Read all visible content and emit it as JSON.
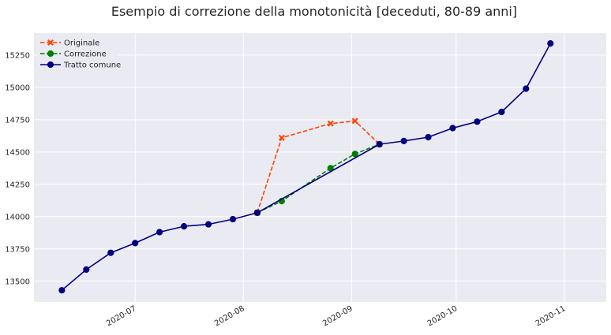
{
  "chart_data": {
    "type": "line",
    "title": "Esempio di correzione della monotonicità [deceduti, 80-89 anni]",
    "xlabel": "",
    "ylabel": "",
    "x_ticks": [
      "2020-07",
      "2020-08",
      "2020-09",
      "2020-10",
      "2020-11"
    ],
    "x_tick_dates": [
      "2020-07-01",
      "2020-08-01",
      "2020-09-01",
      "2020-10-01",
      "2020-11-01"
    ],
    "xlim": [
      "2020-06-02",
      "2020-11-13"
    ],
    "ylim": [
      13340,
      15420
    ],
    "y_ticks": [
      13500,
      13750,
      14000,
      14250,
      14500,
      14750,
      15000,
      15250
    ],
    "grid": true,
    "legend_position": "top-left",
    "series": [
      {
        "name": "Originale",
        "color": "#ff4500",
        "line_style": "dashed",
        "marker": "x",
        "x": [
          "2020-08-05",
          "2020-08-12",
          "2020-08-26",
          "2020-09-02",
          "2020-09-09"
        ],
        "values": [
          14030,
          14610,
          14720,
          14740,
          14560
        ]
      },
      {
        "name": "Correzione",
        "color": "#008000",
        "line_style": "dashed",
        "marker": "circle",
        "x": [
          "2020-08-05",
          "2020-08-12",
          "2020-08-26",
          "2020-09-02",
          "2020-09-09"
        ],
        "values": [
          14030,
          14120,
          14375,
          14485,
          14560
        ]
      },
      {
        "name": "Tratto comune",
        "color": "#000080",
        "line_style": "solid",
        "marker": "circle",
        "x": [
          "2020-06-10",
          "2020-06-17",
          "2020-06-24",
          "2020-07-01",
          "2020-07-08",
          "2020-07-15",
          "2020-07-22",
          "2020-07-29",
          "2020-08-05",
          "2020-09-09",
          "2020-09-16",
          "2020-09-23",
          "2020-09-30",
          "2020-10-07",
          "2020-10-14",
          "2020-10-21",
          "2020-10-28"
        ],
        "values": [
          13430,
          13590,
          13720,
          13795,
          13880,
          13925,
          13940,
          13980,
          14030,
          14560,
          14585,
          14615,
          14685,
          14735,
          14810,
          14990,
          15340
        ]
      }
    ]
  }
}
